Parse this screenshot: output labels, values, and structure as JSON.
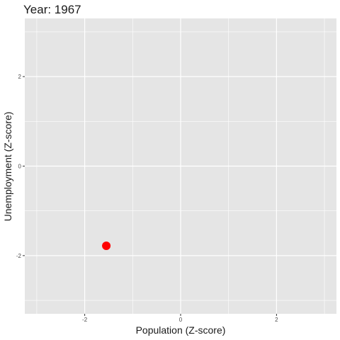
{
  "chart_data": {
    "type": "scatter",
    "title": "Year: 1967",
    "xlabel": "Population (Z-score)",
    "ylabel": "Unemployment (Z-score)",
    "xlim": [
      -3.25,
      3.25
    ],
    "ylim": [
      -3.3,
      3.3
    ],
    "x_major_ticks": [
      -2,
      0,
      2
    ],
    "y_major_ticks": [
      -2,
      0,
      2
    ],
    "x_minor_ticks": [
      -3,
      -1,
      1,
      3
    ],
    "y_minor_ticks": [
      -3,
      -1,
      1,
      3
    ],
    "grid": true,
    "background_color": "#E5E5E5",
    "grid_color": "#FFFFFF",
    "points": [
      {
        "x": -1.55,
        "y": -1.78,
        "color": "#FF0000"
      }
    ]
  }
}
